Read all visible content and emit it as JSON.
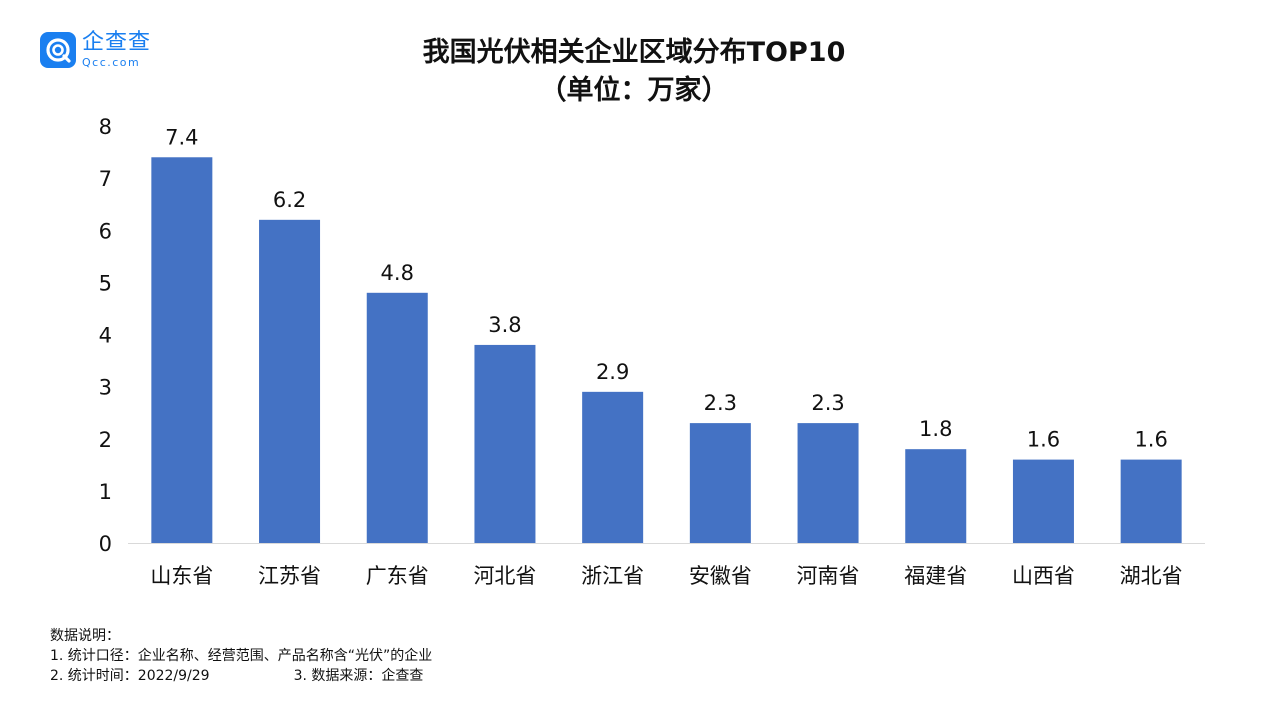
{
  "logo": {
    "name": "企查查",
    "sub": "Qcc.com",
    "icon": "qcc-logo-icon",
    "color": "#1a7ff0"
  },
  "chart_data": {
    "type": "bar",
    "title": "我国光伏相关企业区域分布TOP10",
    "subtitle": "（单位：万家）",
    "categories": [
      "山东省",
      "江苏省",
      "广东省",
      "河北省",
      "浙江省",
      "安徽省",
      "河南省",
      "福建省",
      "山西省",
      "湖北省"
    ],
    "values": [
      7.4,
      6.2,
      4.8,
      3.8,
      2.9,
      2.3,
      2.3,
      1.8,
      1.6,
      1.6
    ],
    "data_labels": [
      "7.4",
      "6.2",
      "4.8",
      "3.8",
      "2.9",
      "2.3",
      "2.3",
      "1.8",
      "1.6",
      "1.6"
    ],
    "ylim": [
      0,
      8
    ],
    "yticks": [
      0,
      1,
      2,
      3,
      4,
      5,
      6,
      7,
      8
    ],
    "xlabel": "",
    "ylabel": "",
    "grid": false,
    "bar_color": "#4472c4",
    "axis_color": "#d9d9d9"
  },
  "notes": {
    "heading": "数据说明：",
    "line1": "1. 统计口径：企业名称、经营范围、产品名称含“光伏”的企业",
    "line2a": "2. 统计时间：2022/9/29",
    "line2b": "3. 数据来源：企查查"
  }
}
